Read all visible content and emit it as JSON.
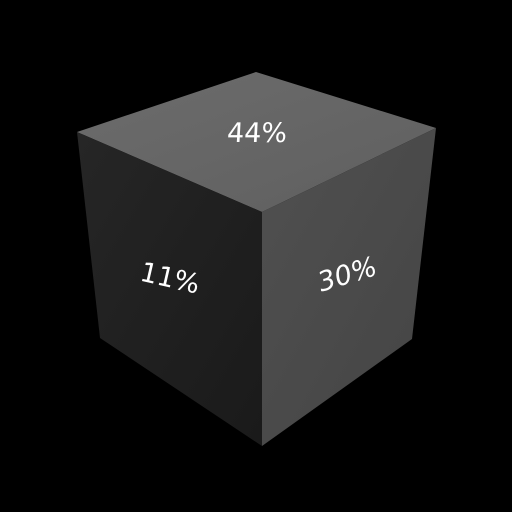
{
  "cube": {
    "faces": {
      "top": {
        "label": "44%",
        "color": "#666666"
      },
      "left": {
        "label": "11%",
        "color": "#1f1f1f"
      },
      "right": {
        "label": "30%",
        "color": "#4b4b4b"
      }
    },
    "background": "#000000",
    "text_color": "#ffffff"
  }
}
